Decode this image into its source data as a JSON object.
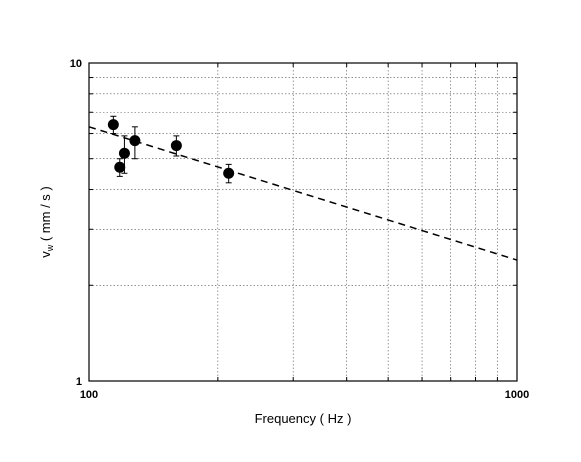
{
  "chart_data": {
    "type": "scatter",
    "title": "",
    "xlabel": "Frequency  ( Hz )",
    "ylabel_main": "v",
    "ylabel_sub": "w",
    "ylabel_unit": "  ( mm / s )",
    "xscale": "log",
    "yscale": "log",
    "xlim": [
      100,
      1000
    ],
    "ylim": [
      1,
      10
    ],
    "grid": true,
    "x_tick_labels": [
      "100",
      "1000"
    ],
    "y_tick_labels": [
      "1",
      "10"
    ],
    "points": [
      {
        "x": 114,
        "y": 6.4,
        "yerr_low": 6.0,
        "yerr_high": 6.8
      },
      {
        "x": 118,
        "y": 4.7,
        "yerr_low": 4.4,
        "yerr_high": 5.0
      },
      {
        "x": 121,
        "y": 5.2,
        "yerr_low": 4.5,
        "yerr_high": 5.9
      },
      {
        "x": 128,
        "y": 5.7,
        "yerr_low": 5.0,
        "yerr_high": 6.3
      },
      {
        "x": 160,
        "y": 5.5,
        "yerr_low": 5.1,
        "yerr_high": 5.9
      },
      {
        "x": 212,
        "y": 4.5,
        "yerr_low": 4.2,
        "yerr_high": 4.8
      }
    ],
    "fit_line": {
      "style": "dashed",
      "x": [
        100,
        1000
      ],
      "y": [
        6.3,
        2.4
      ]
    }
  }
}
